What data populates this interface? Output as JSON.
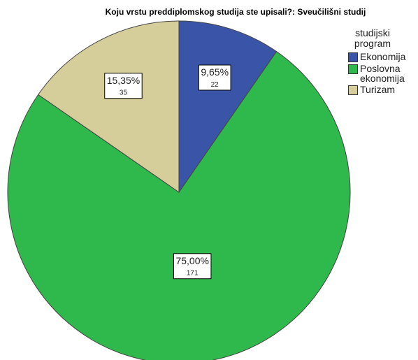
{
  "chart_data": {
    "type": "pie",
    "title": "Koju vrstu preddiplomskog studija ste upisali?: Sveučilišni studij",
    "legend_title": "studijski program",
    "categories": [
      "Ekonomija",
      "Poslovna ekonomija",
      "Turizam"
    ],
    "values": [
      9.65,
      75.0,
      15.35
    ],
    "value_labels": [
      "9,65%",
      "75,00%",
      "15,35%"
    ],
    "counts": [
      22,
      171,
      35
    ],
    "colors": [
      "#3a55a8",
      "#2fb84b",
      "#d5cd9a"
    ],
    "legend": "upper right"
  }
}
